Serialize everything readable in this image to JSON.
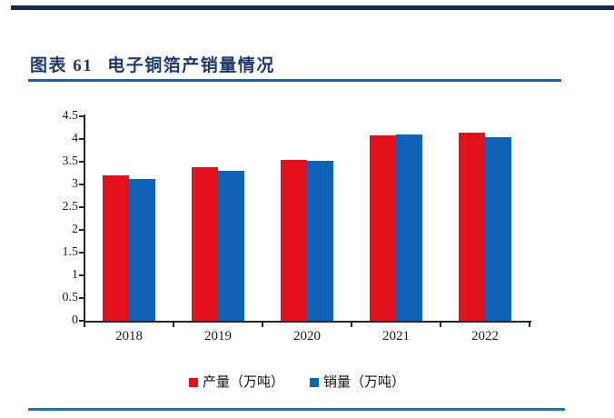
{
  "page": {
    "background": "#ffffff"
  },
  "decorations": {
    "top_bar_color": "#13294a",
    "title_underline_color": "#2a5d9e",
    "bottom_rule_color": "#2e6da4"
  },
  "figure": {
    "tag": "图表 61",
    "title": "电子铜箔产销量情况",
    "title_color": "#1e3a68"
  },
  "chart_data": {
    "type": "bar",
    "title": "电子铜箔产销量情况",
    "categories": [
      "2018",
      "2019",
      "2020",
      "2021",
      "2022"
    ],
    "series": [
      {
        "name": "产量（万吨）",
        "color": "#e2111c",
        "values": [
          3.2,
          3.38,
          3.54,
          4.09,
          4.15
        ]
      },
      {
        "name": "销量（万吨）",
        "color": "#0f62b8",
        "values": [
          3.13,
          3.31,
          3.52,
          4.11,
          4.04
        ]
      }
    ],
    "xlabel": "",
    "ylabel": "",
    "ylim": [
      0,
      4.5
    ],
    "ytick_step": 0.5,
    "ytick_labels": [
      "0",
      "0.5",
      "1",
      "1.5",
      "2",
      "2.5",
      "3",
      "3.5",
      "4",
      "4.5"
    ],
    "grid": false,
    "legend_position": "bottom",
    "axis_color": "#262626"
  }
}
